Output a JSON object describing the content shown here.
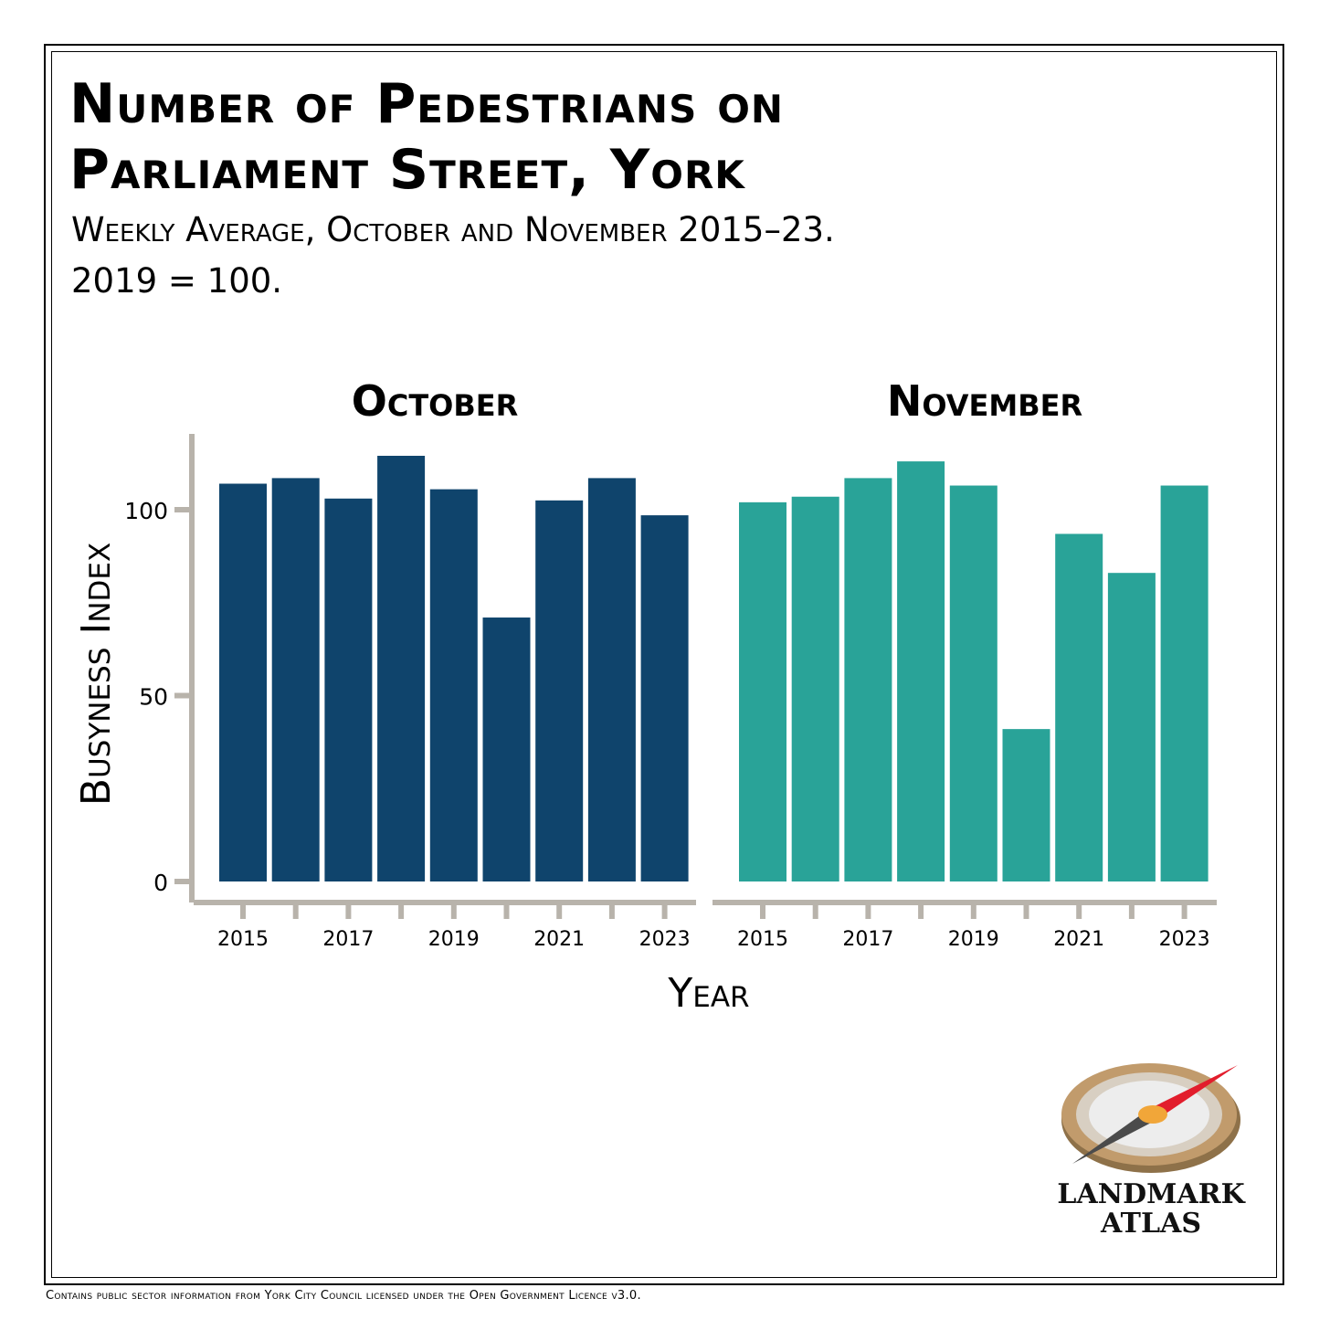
{
  "title": {
    "line1": "Number of Pedestrians on",
    "line2": "Parliament Street, York"
  },
  "subtitle": {
    "line1": "Weekly Average, October and November 2015–23.",
    "line2": "2019 = 100."
  },
  "footer": "Contains public sector information from York City Council licensed under the Open Government Licence v3.0.",
  "logo": {
    "line1": "LANDMARK",
    "line2": "ATLAS",
    "icon": "compass-icon"
  },
  "colors": {
    "october": "#0f446c",
    "november": "#29a398",
    "axis": "#b8b3ab"
  },
  "chart_data": {
    "type": "bar",
    "ylabel": "Busyness Index",
    "xlabel": "Year",
    "ylim": [
      0,
      120
    ],
    "yticks": [
      0,
      50,
      100
    ],
    "grid": false,
    "categories": [
      "2015",
      "2016",
      "2017",
      "2018",
      "2019",
      "2020",
      "2021",
      "2022",
      "2023"
    ],
    "xtick_labels": [
      "2015",
      "2017",
      "2019",
      "2021",
      "2023"
    ],
    "panels": [
      {
        "name": "October",
        "color": "#0f446c",
        "values": [
          107,
          108.5,
          103,
          114.5,
          105.5,
          71,
          102.5,
          108.5,
          98.5
        ]
      },
      {
        "name": "November",
        "color": "#29a398",
        "values": [
          102,
          103.5,
          108.5,
          113,
          106.5,
          41,
          93.5,
          83,
          106.5
        ]
      }
    ]
  }
}
